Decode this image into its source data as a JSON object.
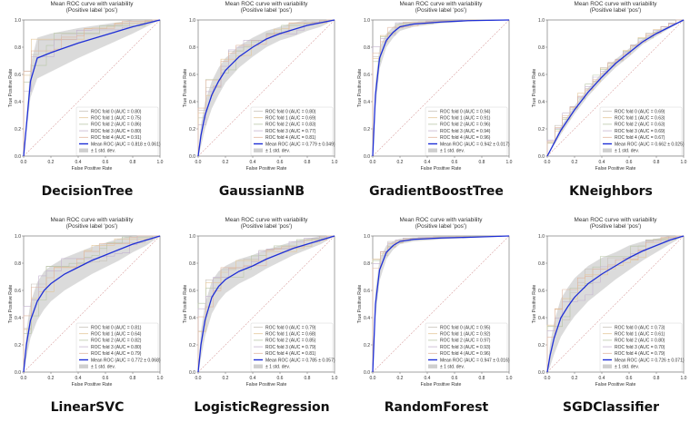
{
  "chart_data": [
    {
      "type": "line",
      "caption": "DecisionTree",
      "title": "Mean ROC curve with variability",
      "subtitle": "(Positive label 'pos')",
      "xlabel": "False Positive Rate",
      "ylabel": "True Positive Rate",
      "xlim": [
        0,
        1
      ],
      "ylim": [
        0,
        1
      ],
      "ticks": [
        "0.0",
        "0.2",
        "0.4",
        "0.6",
        "0.8",
        "1.0"
      ],
      "legend_position": "lower-right",
      "legend": [
        "ROC fold 0 (AUC = 0.80)",
        "ROC fold 1 (AUC = 0.75)",
        "ROC fold 2 (AUC = 0.86)",
        "ROC fold 3 (AUC = 0.80)",
        "ROC fold 4 (AUC = 0.91)",
        "Mean ROC (AUC = 0.818 ± 0.061)",
        "± 1 std. dev."
      ],
      "mean_curve": {
        "x": [
          0,
          0.05,
          0.1,
          0.2,
          0.4,
          0.6,
          0.8,
          1.0
        ],
        "y": [
          0,
          0.55,
          0.72,
          0.76,
          0.83,
          0.89,
          0.95,
          1.0
        ]
      },
      "band_width": [
        0,
        0.12,
        0.15,
        0.14,
        0.11,
        0.08,
        0.05,
        0
      ]
    },
    {
      "type": "line",
      "caption": "GaussianNB",
      "title": "Mean ROC curve with variability",
      "subtitle": "(Positive label 'pos')",
      "xlabel": "False Positive Rate",
      "ylabel": "True Positive Rate",
      "xlim": [
        0,
        1
      ],
      "ylim": [
        0,
        1
      ],
      "ticks": [
        "0.0",
        "0.2",
        "0.4",
        "0.6",
        "0.8",
        "1.0"
      ],
      "legend_position": "lower-right",
      "legend": [
        "ROC fold 0 (AUC = 0.80)",
        "ROC fold 1 (AUC = 0.69)",
        "ROC fold 2 (AUC = 0.83)",
        "ROC fold 3 (AUC = 0.77)",
        "ROC fold 4 (AUC = 0.81)",
        "Mean ROC (AUC = 0.779 ± 0.049)",
        "± 1 std. dev."
      ],
      "mean_curve": {
        "x": [
          0,
          0.02,
          0.05,
          0.1,
          0.15,
          0.2,
          0.3,
          0.4,
          0.5,
          0.6,
          0.7,
          0.8,
          0.9,
          1.0
        ],
        "y": [
          0,
          0.15,
          0.3,
          0.45,
          0.55,
          0.63,
          0.73,
          0.8,
          0.86,
          0.9,
          0.93,
          0.96,
          0.98,
          1.0
        ]
      },
      "band_width": [
        0,
        0.08,
        0.1,
        0.1,
        0.1,
        0.09,
        0.08,
        0.07,
        0.06,
        0.05,
        0.05,
        0.04,
        0.03,
        0
      ]
    },
    {
      "type": "line",
      "caption": "GradientBoostTree",
      "title": "Mean ROC curve with variability",
      "subtitle": "(Positive label 'pos')",
      "xlabel": "False Positive Rate",
      "ylabel": "True Positive Rate",
      "xlim": [
        0,
        1
      ],
      "ylim": [
        0,
        1
      ],
      "ticks": [
        "0.0",
        "0.2",
        "0.4",
        "0.6",
        "0.8",
        "1.0"
      ],
      "legend_position": "lower-right",
      "legend": [
        "ROC fold 0 (AUC = 0.94)",
        "ROC fold 1 (AUC = 0.91)",
        "ROC fold 2 (AUC = 0.96)",
        "ROC fold 3 (AUC = 0.94)",
        "ROC fold 4 (AUC = 0.96)",
        "Mean ROC (AUC = 0.942 ± 0.017)",
        "± 1 std. dev."
      ],
      "mean_curve": {
        "x": [
          0,
          0.02,
          0.05,
          0.1,
          0.15,
          0.2,
          0.3,
          0.5,
          0.7,
          1.0
        ],
        "y": [
          0,
          0.45,
          0.72,
          0.85,
          0.91,
          0.95,
          0.97,
          0.985,
          0.995,
          1.0
        ]
      },
      "band_width": [
        0,
        0.1,
        0.08,
        0.05,
        0.04,
        0.03,
        0.02,
        0.01,
        0.005,
        0
      ]
    },
    {
      "type": "line",
      "caption": "KNeighbors",
      "title": "Mean ROC curve with variability",
      "subtitle": "(Positive label 'pos')",
      "xlabel": "False Positive Rate",
      "ylabel": "True Positive Rate",
      "xlim": [
        0,
        1
      ],
      "ylim": [
        0,
        1
      ],
      "ticks": [
        "0.0",
        "0.2",
        "0.4",
        "0.6",
        "0.8",
        "1.0"
      ],
      "legend_position": "lower-right",
      "legend": [
        "ROC fold 0 (AUC = 0.69)",
        "ROC fold 1 (AUC = 0.63)",
        "ROC fold 2 (AUC = 0.63)",
        "ROC fold 3 (AUC = 0.69)",
        "ROC fold 4 (AUC = 0.67)",
        "Mean ROC (AUC = 0.662 ± 0.025)",
        "± 1 std. dev."
      ],
      "mean_curve": {
        "x": [
          0,
          0.1,
          0.2,
          0.3,
          0.4,
          0.5,
          0.6,
          0.7,
          0.8,
          0.9,
          1.0
        ],
        "y": [
          0,
          0.19,
          0.34,
          0.47,
          0.58,
          0.68,
          0.76,
          0.84,
          0.9,
          0.95,
          1.0
        ]
      },
      "band_width": [
        0,
        0.03,
        0.03,
        0.03,
        0.03,
        0.03,
        0.03,
        0.02,
        0.02,
        0.01,
        0
      ]
    },
    {
      "type": "line",
      "caption": "LinearSVC",
      "title": "Mean ROC curve with variability",
      "subtitle": "(Positive label 'pos')",
      "xlabel": "False Positive Rate",
      "ylabel": "True Positive Rate",
      "xlim": [
        0,
        1
      ],
      "ylim": [
        0,
        1
      ],
      "ticks": [
        "0.0",
        "0.2",
        "0.4",
        "0.6",
        "0.8",
        "1.0"
      ],
      "legend_position": "lower-right",
      "legend": [
        "ROC fold 0 (AUC = 0.81)",
        "ROC fold 1 (AUC = 0.64)",
        "ROC fold 2 (AUC = 0.82)",
        "ROC fold 3 (AUC = 0.80)",
        "ROC fold 4 (AUC = 0.79)",
        "Mean ROC (AUC = 0.772 ± 0.068)",
        "± 1 std. dev."
      ],
      "mean_curve": {
        "x": [
          0,
          0.02,
          0.05,
          0.1,
          0.15,
          0.2,
          0.3,
          0.4,
          0.5,
          0.6,
          0.7,
          0.8,
          0.9,
          1.0
        ],
        "y": [
          0,
          0.2,
          0.38,
          0.52,
          0.6,
          0.65,
          0.72,
          0.77,
          0.82,
          0.86,
          0.9,
          0.94,
          0.97,
          1.0
        ]
      },
      "band_width": [
        0,
        0.1,
        0.13,
        0.14,
        0.14,
        0.13,
        0.12,
        0.11,
        0.1,
        0.09,
        0.08,
        0.06,
        0.04,
        0
      ]
    },
    {
      "type": "line",
      "caption": "LogisticRegression",
      "title": "Mean ROC curve with variability",
      "subtitle": "(Positive label 'pos')",
      "xlabel": "False Positive Rate",
      "ylabel": "True Positive Rate",
      "xlim": [
        0,
        1
      ],
      "ylim": [
        0,
        1
      ],
      "ticks": [
        "0.0",
        "0.2",
        "0.4",
        "0.6",
        "0.8",
        "1.0"
      ],
      "legend_position": "lower-right",
      "legend": [
        "ROC fold 0 (AUC = 0.79)",
        "ROC fold 1 (AUC = 0.68)",
        "ROC fold 2 (AUC = 0.85)",
        "ROC fold 3 (AUC = 0.79)",
        "ROC fold 4 (AUC = 0.81)",
        "Mean ROC (AUC = 0.785 ± 0.057)",
        "± 1 std. dev."
      ],
      "mean_curve": {
        "x": [
          0,
          0.02,
          0.05,
          0.1,
          0.15,
          0.2,
          0.3,
          0.4,
          0.5,
          0.6,
          0.7,
          0.8,
          0.9,
          1.0
        ],
        "y": [
          0,
          0.2,
          0.38,
          0.55,
          0.63,
          0.68,
          0.74,
          0.78,
          0.83,
          0.87,
          0.91,
          0.94,
          0.97,
          1.0
        ]
      },
      "band_width": [
        0,
        0.1,
        0.12,
        0.12,
        0.11,
        0.1,
        0.09,
        0.08,
        0.07,
        0.06,
        0.05,
        0.04,
        0.03,
        0
      ]
    },
    {
      "type": "line",
      "caption": "RandomForest",
      "title": "Mean ROC curve with variability",
      "subtitle": "(Positive label 'pos')",
      "xlabel": "False Positive Rate",
      "ylabel": "True Positive Rate",
      "xlim": [
        0,
        1
      ],
      "ylim": [
        0,
        1
      ],
      "ticks": [
        "0.0",
        "0.2",
        "0.4",
        "0.6",
        "0.8",
        "1.0"
      ],
      "legend_position": "lower-right",
      "legend": [
        "ROC fold 0 (AUC = 0.95)",
        "ROC fold 1 (AUC = 0.92)",
        "ROC fold 2 (AUC = 0.97)",
        "ROC fold 3 (AUC = 0.93)",
        "ROC fold 4 (AUC = 0.96)",
        "Mean ROC (AUC = 0.947 ± 0.016)",
        "± 1 std. dev."
      ],
      "mean_curve": {
        "x": [
          0,
          0.02,
          0.05,
          0.1,
          0.15,
          0.2,
          0.3,
          0.5,
          0.7,
          1.0
        ],
        "y": [
          0,
          0.5,
          0.75,
          0.88,
          0.93,
          0.96,
          0.975,
          0.985,
          0.99,
          1.0
        ]
      },
      "band_width": [
        0,
        0.1,
        0.08,
        0.05,
        0.03,
        0.02,
        0.015,
        0.01,
        0.005,
        0
      ]
    },
    {
      "type": "line",
      "caption": "SGDClassifier",
      "title": "Mean ROC curve with variability",
      "subtitle": "(Positive label 'pos')",
      "xlabel": "False Positive Rate",
      "ylabel": "True Positive Rate",
      "xlim": [
        0,
        1
      ],
      "ylim": [
        0,
        1
      ],
      "ticks": [
        "0.0",
        "0.2",
        "0.4",
        "0.6",
        "0.8",
        "1.0"
      ],
      "legend_position": "lower-right",
      "legend": [
        "ROC fold 0 (AUC = 0.73)",
        "ROC fold 1 (AUC = 0.61)",
        "ROC fold 2 (AUC = 0.80)",
        "ROC fold 3 (AUC = 0.70)",
        "ROC fold 4 (AUC = 0.79)",
        "Mean ROC (AUC = 0.726 ± 0.071)",
        "± 1 std. dev."
      ],
      "mean_curve": {
        "x": [
          0,
          0.02,
          0.05,
          0.1,
          0.15,
          0.2,
          0.3,
          0.4,
          0.5,
          0.6,
          0.7,
          0.8,
          0.9,
          1.0
        ],
        "y": [
          0,
          0.12,
          0.25,
          0.4,
          0.48,
          0.55,
          0.65,
          0.72,
          0.78,
          0.84,
          0.89,
          0.93,
          0.97,
          1.0
        ]
      },
      "band_width": [
        0,
        0.08,
        0.12,
        0.14,
        0.14,
        0.14,
        0.13,
        0.12,
        0.1,
        0.09,
        0.07,
        0.05,
        0.03,
        0
      ]
    }
  ],
  "colors": {
    "mean_line": "#1f2fd6",
    "band": "#cfcfcf",
    "chance_line": "#d9a0a0",
    "fold_lines": [
      "#c9c3bb",
      "#e4c79a",
      "#b9c7a8",
      "#c4b3cf",
      "#e0b7a0"
    ]
  }
}
